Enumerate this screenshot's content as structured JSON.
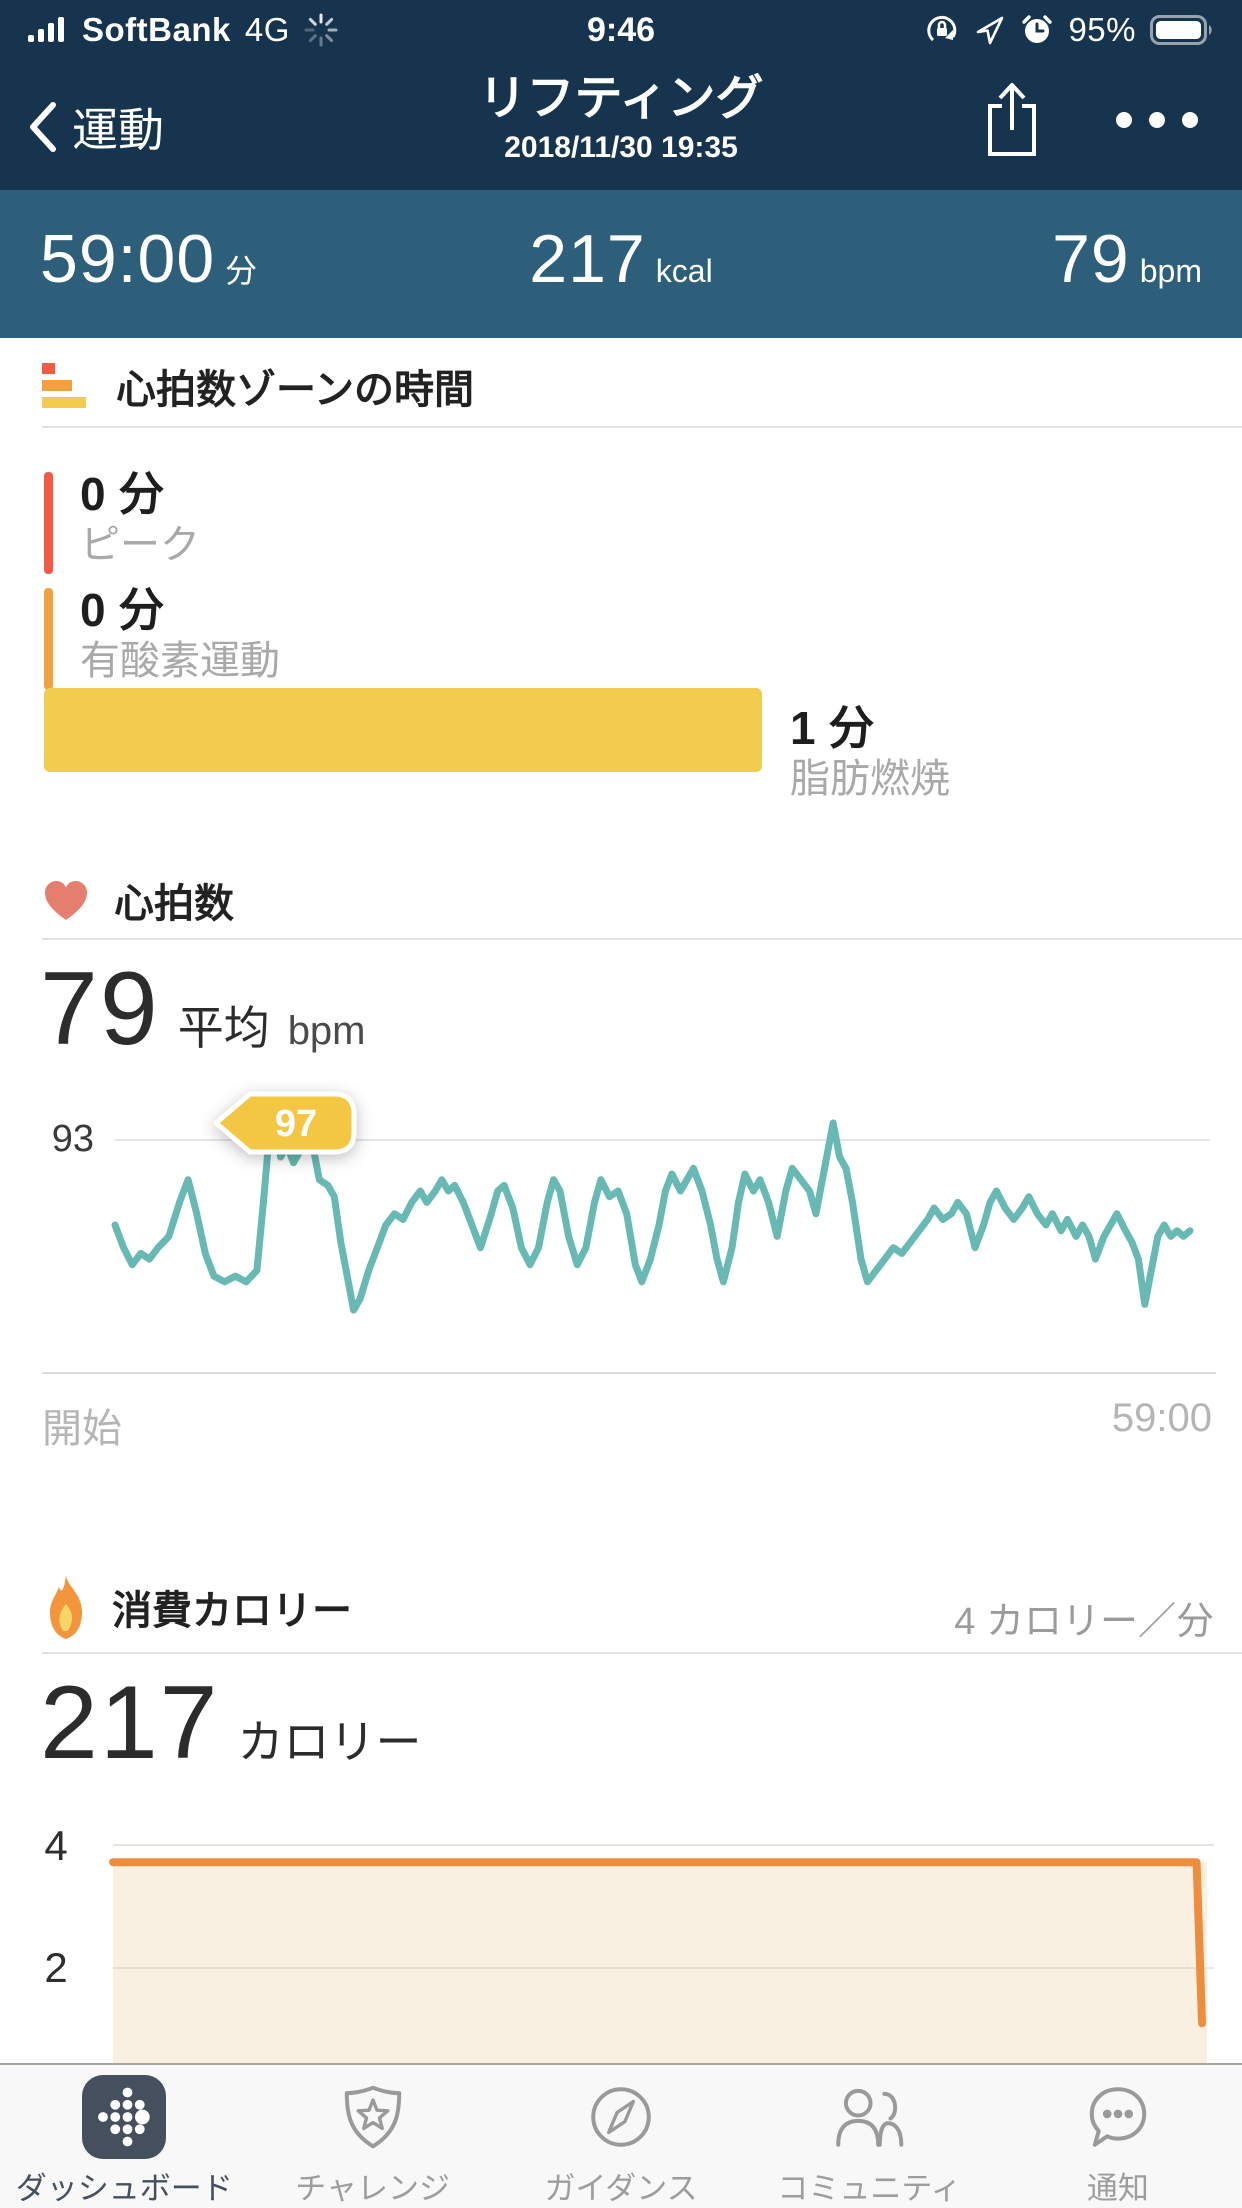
{
  "status_bar": {
    "carrier": "SoftBank",
    "network": "4G",
    "time": "9:46",
    "battery_percent": "95%"
  },
  "nav": {
    "back_label": "運動",
    "title": "リフティング",
    "subtitle": "2018/11/30 19:35"
  },
  "summary": {
    "duration": "59:00",
    "duration_unit": "分",
    "calories": "217",
    "calories_unit": "kcal",
    "heart_rate": "79",
    "heart_rate_unit": "bpm"
  },
  "zones": {
    "title": "心拍数ゾーンの時間",
    "items": [
      {
        "value": "0 分",
        "label": "ピーク",
        "color": "#f15b46"
      },
      {
        "value": "0 分",
        "label": "有酸素運動",
        "color": "#f2a13e"
      },
      {
        "value": "1 分",
        "label": "脂肪燃焼",
        "color": "#f3cc4f"
      }
    ]
  },
  "heart_rate": {
    "title": "心拍数",
    "average": "79",
    "average_label": "平均",
    "unit": "bpm",
    "axis_max": "93",
    "callout": "97",
    "x_start": "開始",
    "x_end": "59:00"
  },
  "calories": {
    "title": "消費カロリー",
    "rate": "4 カロリー／分",
    "total": "217",
    "total_label": "カロリー",
    "yticks": [
      "4",
      "2",
      "0"
    ]
  },
  "tab_bar": {
    "items": [
      {
        "label": "ダッシュボード",
        "active": true
      },
      {
        "label": "チャレンジ",
        "active": false
      },
      {
        "label": "ガイダンス",
        "active": false
      },
      {
        "label": "コミュニティ",
        "active": false
      },
      {
        "label": "通知",
        "active": false
      }
    ]
  },
  "chart_data": [
    {
      "type": "line",
      "name": "heart_rate_during_workout",
      "title": "心拍数",
      "ylabel": "bpm",
      "average_bpm": 79,
      "max_bpm": 97,
      "gridline_value": 93,
      "x_axis": {
        "start_label": "開始",
        "end_label": "59:00",
        "x_is_fraction_of_workout": true
      },
      "line_color": "#68b9b4",
      "grid_on": true,
      "series": [
        {
          "name": "心拍数 (bpm)",
          "points": [
            [
              0,
              78
            ],
            [
              0.008,
              74
            ],
            [
              0.016,
              71
            ],
            [
              0.024,
              73
            ],
            [
              0.032,
              72
            ],
            [
              0.04,
              74
            ],
            [
              0.05,
              76
            ],
            [
              0.06,
              82
            ],
            [
              0.068,
              86
            ],
            [
              0.076,
              80
            ],
            [
              0.084,
              73
            ],
            [
              0.092,
              69
            ],
            [
              0.102,
              68
            ],
            [
              0.112,
              69
            ],
            [
              0.122,
              68
            ],
            [
              0.132,
              70
            ],
            [
              0.138,
              82
            ],
            [
              0.144,
              95
            ],
            [
              0.148,
              97
            ],
            [
              0.154,
              90
            ],
            [
              0.16,
              92
            ],
            [
              0.166,
              89
            ],
            [
              0.172,
              91
            ],
            [
              0.178,
              95
            ],
            [
              0.184,
              92
            ],
            [
              0.19,
              86
            ],
            [
              0.198,
              85
            ],
            [
              0.204,
              83
            ],
            [
              0.21,
              75
            ],
            [
              0.216,
              69
            ],
            [
              0.222,
              63
            ],
            [
              0.228,
              65
            ],
            [
              0.236,
              70
            ],
            [
              0.244,
              74
            ],
            [
              0.252,
              78
            ],
            [
              0.26,
              80
            ],
            [
              0.268,
              79
            ],
            [
              0.276,
              82
            ],
            [
              0.284,
              84
            ],
            [
              0.29,
              82
            ],
            [
              0.298,
              84
            ],
            [
              0.304,
              86
            ],
            [
              0.31,
              84
            ],
            [
              0.316,
              85
            ],
            [
              0.324,
              82
            ],
            [
              0.332,
              78
            ],
            [
              0.34,
              74
            ],
            [
              0.35,
              80
            ],
            [
              0.356,
              84
            ],
            [
              0.362,
              85
            ],
            [
              0.37,
              81
            ],
            [
              0.378,
              74
            ],
            [
              0.386,
              71
            ],
            [
              0.394,
              74
            ],
            [
              0.402,
              82
            ],
            [
              0.408,
              86
            ],
            [
              0.414,
              84
            ],
            [
              0.422,
              76
            ],
            [
              0.43,
              71
            ],
            [
              0.438,
              74
            ],
            [
              0.446,
              82
            ],
            [
              0.452,
              86
            ],
            [
              0.46,
              83
            ],
            [
              0.468,
              84
            ],
            [
              0.476,
              80
            ],
            [
              0.484,
              71
            ],
            [
              0.49,
              68
            ],
            [
              0.498,
              72
            ],
            [
              0.506,
              78
            ],
            [
              0.512,
              84
            ],
            [
              0.518,
              87
            ],
            [
              0.526,
              84
            ],
            [
              0.532,
              86
            ],
            [
              0.538,
              88
            ],
            [
              0.546,
              84
            ],
            [
              0.554,
              78
            ],
            [
              0.56,
              72
            ],
            [
              0.566,
              68
            ],
            [
              0.574,
              74
            ],
            [
              0.58,
              82
            ],
            [
              0.586,
              87
            ],
            [
              0.594,
              84
            ],
            [
              0.6,
              86
            ],
            [
              0.608,
              82
            ],
            [
              0.616,
              76
            ],
            [
              0.624,
              84
            ],
            [
              0.63,
              88
            ],
            [
              0.638,
              86
            ],
            [
              0.646,
              84
            ],
            [
              0.652,
              80
            ],
            [
              0.658,
              86
            ],
            [
              0.664,
              92
            ],
            [
              0.668,
              96
            ],
            [
              0.674,
              90
            ],
            [
              0.68,
              88
            ],
            [
              0.686,
              82
            ],
            [
              0.694,
              72
            ],
            [
              0.7,
              68
            ],
            [
              0.708,
              70
            ],
            [
              0.716,
              72
            ],
            [
              0.724,
              74
            ],
            [
              0.732,
              73
            ],
            [
              0.74,
              75
            ],
            [
              0.748,
              77
            ],
            [
              0.756,
              79
            ],
            [
              0.762,
              81
            ],
            [
              0.77,
              79
            ],
            [
              0.778,
              80
            ],
            [
              0.784,
              82
            ],
            [
              0.792,
              80
            ],
            [
              0.8,
              74
            ],
            [
              0.808,
              78
            ],
            [
              0.814,
              82
            ],
            [
              0.82,
              84
            ],
            [
              0.828,
              81
            ],
            [
              0.836,
              79
            ],
            [
              0.844,
              81
            ],
            [
              0.85,
              83
            ],
            [
              0.858,
              80
            ],
            [
              0.866,
              78
            ],
            [
              0.872,
              80
            ],
            [
              0.88,
              77
            ],
            [
              0.886,
              79
            ],
            [
              0.894,
              76
            ],
            [
              0.9,
              78
            ],
            [
              0.906,
              76
            ],
            [
              0.912,
              72
            ],
            [
              0.92,
              76
            ],
            [
              0.926,
              78
            ],
            [
              0.932,
              80
            ],
            [
              0.94,
              77
            ],
            [
              0.946,
              75
            ],
            [
              0.952,
              72
            ],
            [
              0.958,
              64
            ],
            [
              0.964,
              70
            ],
            [
              0.97,
              76
            ],
            [
              0.976,
              78
            ],
            [
              0.982,
              76
            ],
            [
              0.988,
              77
            ],
            [
              0.994,
              76
            ],
            [
              1,
              77
            ]
          ]
        }
      ],
      "annotation": {
        "text": "97",
        "at_fraction": 0.148
      }
    },
    {
      "type": "area",
      "name": "calories_per_minute",
      "title": "消費カロリー",
      "ylabel": "カロリー／分",
      "ylim": [
        0,
        4
      ],
      "yticks": [
        4,
        2,
        0
      ],
      "rate_label": "4 カロリー／分",
      "total_calories": 217,
      "line_color": "#ee8d3d",
      "fill_color": "#faf0e2",
      "grid_on": true,
      "series": [
        {
          "name": "カロリー／分",
          "points": [
            [
              0,
              3.72
            ],
            [
              0.995,
              3.72
            ],
            [
              1,
              1.1
            ]
          ]
        }
      ]
    }
  ]
}
